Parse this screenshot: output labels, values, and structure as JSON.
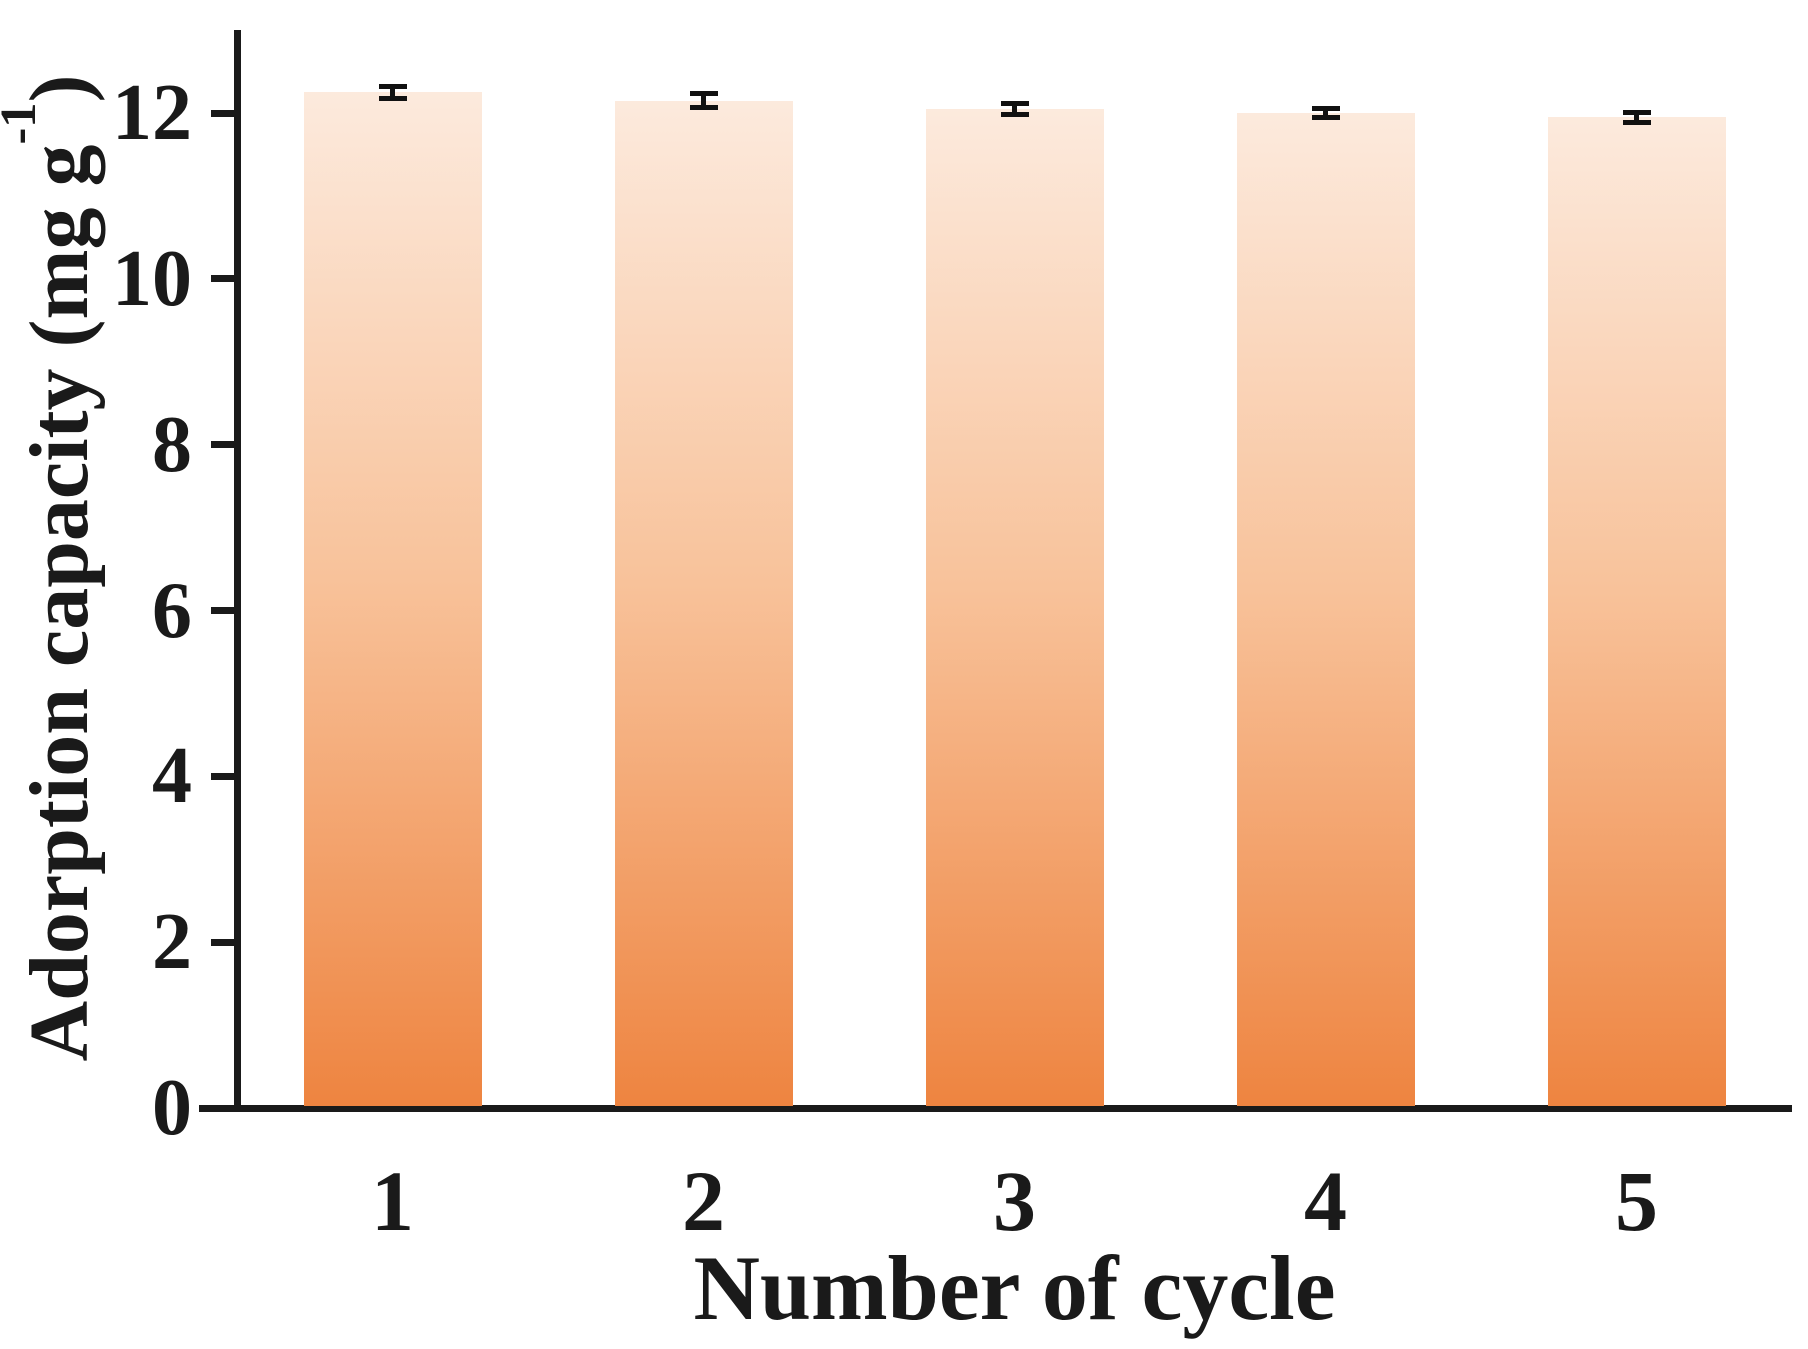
{
  "chart_data": {
    "type": "bar",
    "title": "",
    "xlabel": "Number of cycle",
    "ylabel": {
      "prefix": "Adorption capacity (mg g",
      "superscript": "-1",
      "suffix": ")"
    },
    "categories": [
      "1",
      "2",
      "3",
      "4",
      "5"
    ],
    "values": [
      12.25,
      12.15,
      12.05,
      12.0,
      11.95
    ],
    "errors": [
      0.07,
      0.08,
      0.07,
      0.06,
      0.06
    ],
    "ylim": [
      0,
      13
    ],
    "yticks": [
      0,
      2,
      4,
      6,
      8,
      10,
      12
    ],
    "grid": false,
    "legend": "none",
    "colors": {
      "bar_gradient_top": "#fceadd",
      "bar_gradient_mid": "#f8c29a",
      "bar_gradient_bottom": "#ee8440",
      "axis": "#1a1a1a",
      "error_bar": "#111111",
      "background": "#ffffff"
    }
  }
}
